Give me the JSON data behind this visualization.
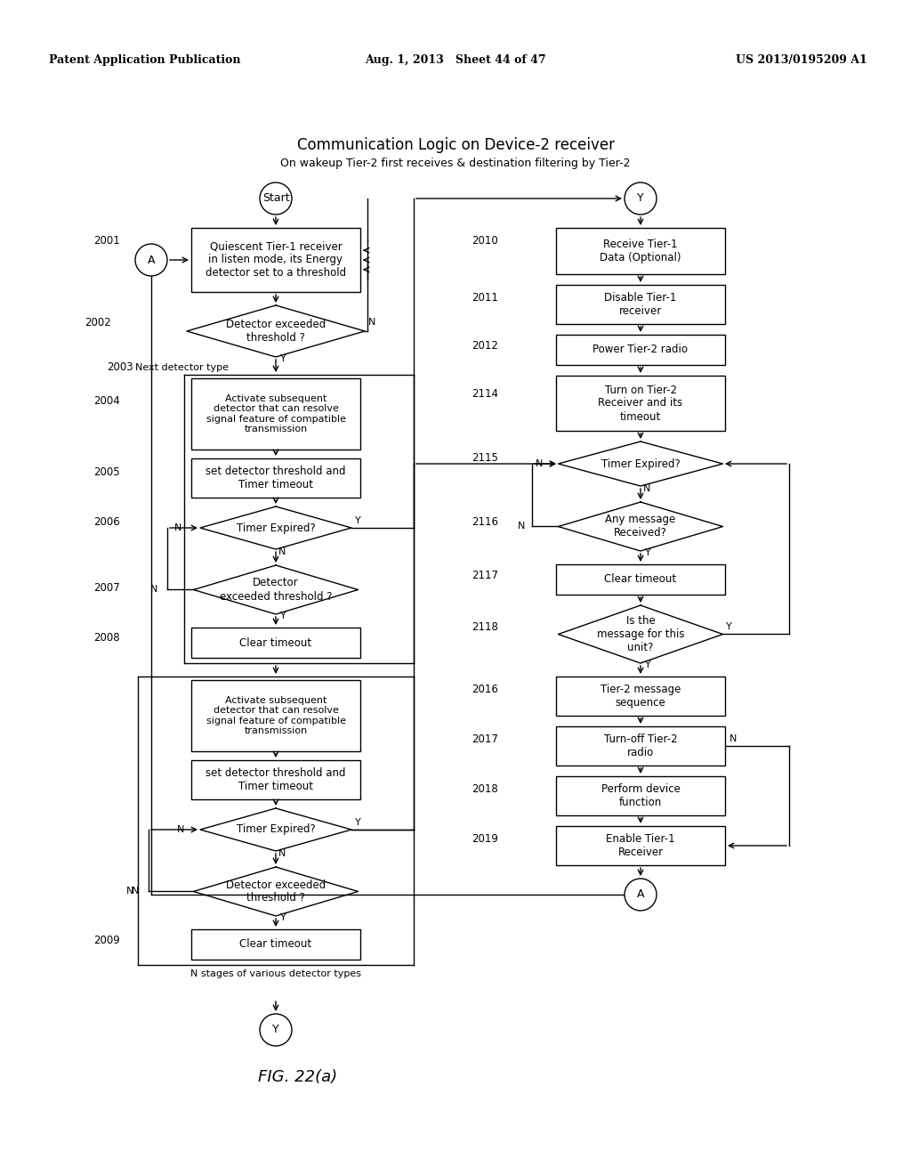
{
  "title_line1": "Communication Logic on Device-2 receiver",
  "title_line2": "On wakeup Tier-2 first receives & destination filtering by Tier-2",
  "header_left": "Patent Application Publication",
  "header_mid": "Aug. 1, 2013   Sheet 44 of 47",
  "header_right": "US 2013/0195209 A1",
  "fig_label": "FIG. 22(a)",
  "bg_color": "#ffffff"
}
